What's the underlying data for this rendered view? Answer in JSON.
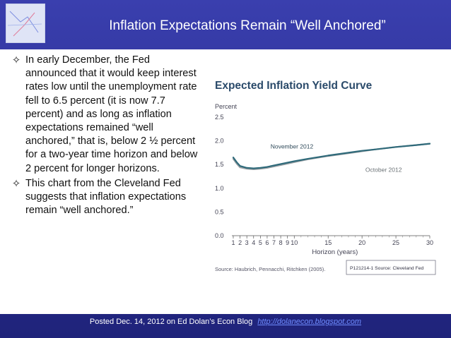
{
  "slide": {
    "title": "Inflation Expectations Remain “Well Anchored”",
    "bullets": [
      "In early December, the Fed announced that it would keep interest rates low until the unemployment rate fell to 6.5 percent (it is now 7.7 percent) and as long as inflation expectations remained “well anchored,” that is, below 2 ½ percent for a two-year time horizon and below 2 percent for longer horizons.",
      "This chart from the Cleveland Fed suggests that inflation expectations remain “well anchored.”"
    ],
    "bullet_icon": "four-point-star-icon",
    "footer_text": "Posted Dec. 14, 2012 on Ed Dolan’s Econ Blog",
    "footer_link": "http://dolanecon.blogspot.com"
  },
  "chart_data": {
    "type": "line",
    "title": "Expected Inflation Yield Curve",
    "ylabel": "Percent",
    "xlabel": "Horizon (years)",
    "ylim": [
      0,
      2.5
    ],
    "xlim": [
      1,
      30
    ],
    "yticks": [
      "2.5",
      "2.0",
      "1.5",
      "1.0",
      "0.5",
      "0.0"
    ],
    "xticks": [
      "1",
      "2",
      "3",
      "4",
      "5",
      "6",
      "7",
      "8",
      "9",
      "10",
      "15",
      "20",
      "25",
      "30"
    ],
    "grid": false,
    "source": "Source: Haubrich, Pennacchi, Ritchken (2005).",
    "note": "P121214-1 Source: Cleveland Fed",
    "series": [
      {
        "name": "November 2012",
        "color": "#2f6a7a",
        "x": [
          1,
          1.5,
          2,
          3,
          4,
          5,
          6,
          7,
          8,
          9,
          10,
          12,
          15,
          18,
          20,
          22,
          25,
          28,
          30
        ],
        "y": [
          1.65,
          1.55,
          1.47,
          1.43,
          1.42,
          1.43,
          1.45,
          1.48,
          1.51,
          1.54,
          1.57,
          1.62,
          1.69,
          1.75,
          1.79,
          1.82,
          1.87,
          1.91,
          1.94
        ]
      },
      {
        "name": "October 2012",
        "color": "#9aa0a4",
        "x": [
          1,
          1.5,
          2,
          3,
          4,
          5,
          6,
          7,
          8,
          9,
          10,
          12,
          15,
          18,
          20,
          22,
          25,
          28,
          30
        ],
        "y": [
          1.62,
          1.52,
          1.44,
          1.41,
          1.4,
          1.41,
          1.43,
          1.46,
          1.49,
          1.52,
          1.55,
          1.61,
          1.68,
          1.74,
          1.78,
          1.82,
          1.87,
          1.91,
          1.94
        ]
      }
    ],
    "series_labels": [
      {
        "text": "November 2012",
        "x": 6.5,
        "y": 1.84
      },
      {
        "text": "October 2012",
        "x": 20.5,
        "y": 1.35
      }
    ]
  }
}
